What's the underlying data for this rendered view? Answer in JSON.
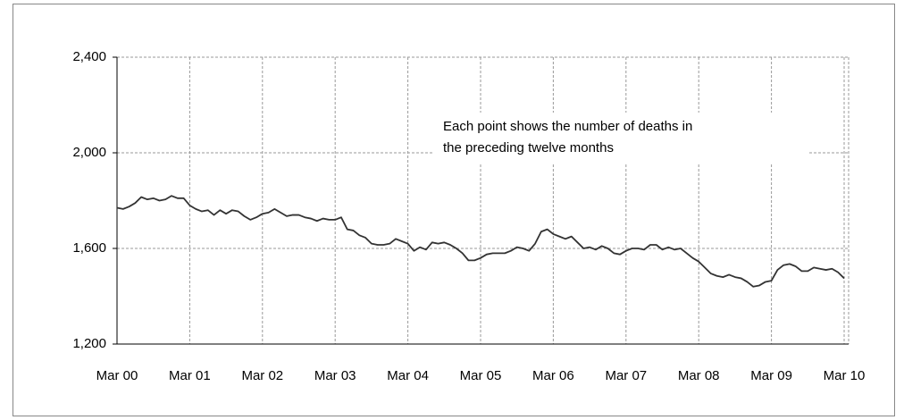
{
  "chart_data": {
    "type": "line",
    "annotation": [
      "Each point shows the number of deaths in",
      "the preceding twelve months"
    ],
    "categories": [
      "Mar 00",
      null,
      null,
      null,
      null,
      null,
      null,
      null,
      null,
      null,
      null,
      null,
      "Mar 01",
      null,
      null,
      null,
      null,
      null,
      null,
      null,
      null,
      null,
      null,
      null,
      "Mar 02",
      null,
      null,
      null,
      null,
      null,
      null,
      null,
      null,
      null,
      null,
      null,
      "Mar 03",
      null,
      null,
      null,
      null,
      null,
      null,
      null,
      null,
      null,
      null,
      null,
      "Mar 04",
      null,
      null,
      null,
      null,
      null,
      null,
      null,
      null,
      null,
      null,
      null,
      "Mar 05",
      null,
      null,
      null,
      null,
      null,
      null,
      null,
      null,
      null,
      null,
      null,
      "Mar 06",
      null,
      null,
      null,
      null,
      null,
      null,
      null,
      null,
      null,
      null,
      null,
      "Mar 07",
      null,
      null,
      null,
      null,
      null,
      null,
      null,
      null,
      null,
      null,
      null,
      "Mar 08",
      null,
      null,
      null,
      null,
      null,
      null,
      null,
      null,
      null,
      null,
      null,
      "Mar 09",
      null,
      null,
      null,
      null,
      null,
      null,
      null,
      null,
      null,
      null,
      null,
      "Mar 10"
    ],
    "series": [
      {
        "color": "#333333",
        "values": [
          1770,
          1765,
          1775,
          1790,
          1815,
          1805,
          1810,
          1800,
          1805,
          1820,
          1810,
          1810,
          1780,
          1765,
          1755,
          1760,
          1740,
          1760,
          1745,
          1760,
          1755,
          1735,
          1720,
          1730,
          1745,
          1750,
          1765,
          1750,
          1735,
          1740,
          1740,
          1730,
          1725,
          1715,
          1725,
          1720,
          1720,
          1730,
          1680,
          1675,
          1655,
          1645,
          1620,
          1615,
          1615,
          1620,
          1640,
          1630,
          1620,
          1590,
          1605,
          1595,
          1625,
          1620,
          1625,
          1615,
          1600,
          1580,
          1550,
          1550,
          1560,
          1575,
          1580,
          1580,
          1580,
          1590,
          1605,
          1600,
          1590,
          1620,
          1670,
          1680,
          1660,
          1650,
          1640,
          1650,
          1625,
          1600,
          1605,
          1595,
          1610,
          1600,
          1580,
          1575,
          1590,
          1600,
          1600,
          1595,
          1615,
          1615,
          1595,
          1605,
          1595,
          1600,
          1580,
          1560,
          1545,
          1520,
          1495,
          1485,
          1480,
          1490,
          1480,
          1475,
          1460,
          1440,
          1445,
          1460,
          1465,
          1510,
          1530,
          1535,
          1525,
          1505,
          1505,
          1520,
          1515,
          1510,
          1515,
          1500,
          1475
        ]
      }
    ],
    "ylim": [
      1200,
      2400
    ],
    "yticks": [
      {
        "value": 1200,
        "label": "1,200"
      },
      {
        "value": 1600,
        "label": "1,600"
      },
      {
        "value": 2000,
        "label": "2,000"
      },
      {
        "value": 2400,
        "label": "2,400"
      }
    ],
    "grid": true
  }
}
